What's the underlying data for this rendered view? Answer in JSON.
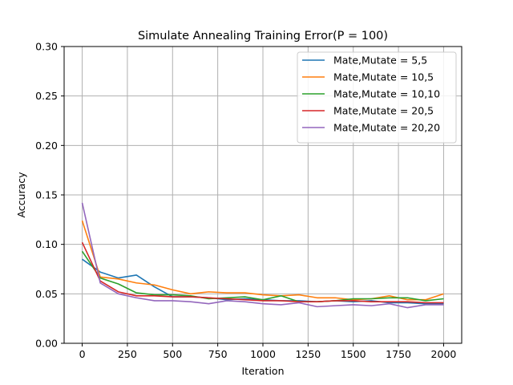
{
  "chart_data": {
    "type": "line",
    "title": "Simulate Annealing Training Error(P = 100)",
    "xlabel": "Iteration",
    "ylabel": "Accuracy",
    "xlim": [
      -100,
      2100
    ],
    "ylim": [
      0.0,
      0.3
    ],
    "x_ticks": [
      0,
      250,
      500,
      750,
      1000,
      1250,
      1500,
      1750,
      2000
    ],
    "y_ticks": [
      0.0,
      0.05,
      0.1,
      0.15,
      0.2,
      0.25,
      0.3
    ],
    "x_tick_labels": [
      "0",
      "250",
      "500",
      "750",
      "1000",
      "1250",
      "1500",
      "1750",
      "2000"
    ],
    "y_tick_labels": [
      "0.00",
      "0.05",
      "0.10",
      "0.15",
      "0.20",
      "0.25",
      "0.30"
    ],
    "grid": true,
    "legend_position": "top-right",
    "x": [
      0,
      100,
      200,
      300,
      400,
      500,
      600,
      700,
      800,
      900,
      1000,
      1100,
      1200,
      1300,
      1400,
      1500,
      1600,
      1700,
      1800,
      1900,
      2000
    ],
    "series": [
      {
        "name": "Mate,Mutate = 5,5",
        "color": "#1f77b4",
        "values": [
          0.085,
          0.072,
          0.066,
          0.069,
          0.057,
          0.047,
          0.047,
          0.046,
          0.044,
          0.045,
          0.044,
          0.043,
          0.043,
          0.042,
          0.043,
          0.042,
          0.043,
          0.041,
          0.041,
          0.04,
          0.04
        ]
      },
      {
        "name": "Mate,Mutate = 10,5",
        "color": "#ff7f0e",
        "values": [
          0.124,
          0.067,
          0.065,
          0.061,
          0.059,
          0.054,
          0.05,
          0.052,
          0.051,
          0.051,
          0.049,
          0.048,
          0.049,
          0.046,
          0.046,
          0.044,
          0.045,
          0.048,
          0.044,
          0.044,
          0.05
        ]
      },
      {
        "name": "Mate,Mutate = 10,10",
        "color": "#2ca02c",
        "values": [
          0.093,
          0.066,
          0.06,
          0.051,
          0.049,
          0.049,
          0.048,
          0.045,
          0.046,
          0.047,
          0.044,
          0.048,
          0.042,
          0.042,
          0.043,
          0.045,
          0.045,
          0.046,
          0.046,
          0.043,
          0.045
        ]
      },
      {
        "name": "Mate,Mutate = 20,5",
        "color": "#d62728",
        "values": [
          0.102,
          0.063,
          0.052,
          0.048,
          0.048,
          0.047,
          0.047,
          0.046,
          0.045,
          0.044,
          0.043,
          0.043,
          0.042,
          0.042,
          0.043,
          0.043,
          0.042,
          0.042,
          0.042,
          0.041,
          0.041
        ]
      },
      {
        "name": "Mate,Mutate = 20,20",
        "color": "#9467bd",
        "values": [
          0.142,
          0.061,
          0.05,
          0.046,
          0.043,
          0.043,
          0.042,
          0.04,
          0.043,
          0.042,
          0.04,
          0.039,
          0.041,
          0.037,
          0.038,
          0.039,
          0.038,
          0.04,
          0.036,
          0.039,
          0.039
        ]
      }
    ]
  }
}
